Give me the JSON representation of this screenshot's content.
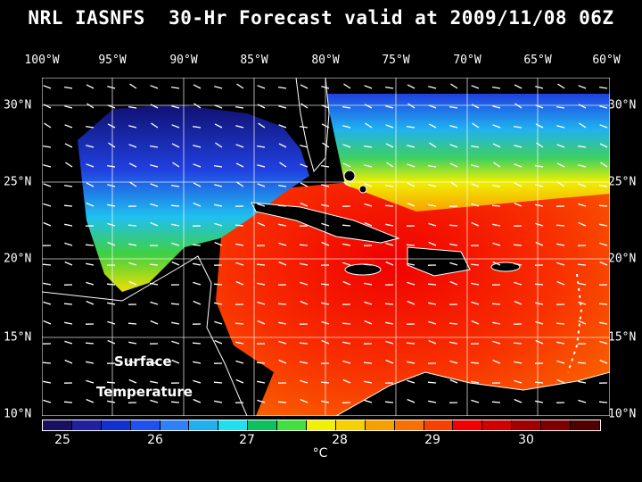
{
  "title": "NRL IASNFS  30-Hr Forecast valid at 2009/11/08 06Z",
  "lon_labels": [
    "100°W",
    "95°W",
    "90°W",
    "85°W",
    "80°W",
    "75°W",
    "70°W",
    "65°W",
    "60°W"
  ],
  "lat_labels": [
    "30°N",
    "25°N",
    "20°N",
    "15°N",
    "10°N"
  ],
  "field_label_1": "Surface",
  "field_label_2": "Temperature",
  "colorbar": {
    "tick_labels": [
      "25",
      "26",
      "27",
      "28",
      "29",
      "30"
    ],
    "unit": "°C",
    "colors": [
      "#1a1060",
      "#2020a0",
      "#1030d0",
      "#2050f0",
      "#3080f8",
      "#20b0f0",
      "#20e0f0",
      "#10c060",
      "#40e040",
      "#f0f000",
      "#f8d000",
      "#f8a000",
      "#f87000",
      "#f84000",
      "#f00000",
      "#d00000",
      "#a00000",
      "#800000",
      "#500000"
    ]
  }
}
